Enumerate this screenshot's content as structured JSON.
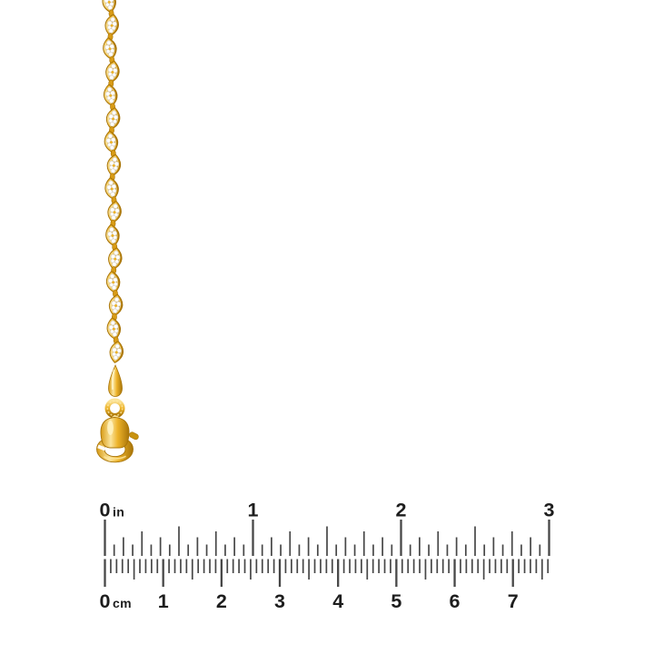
{
  "page": {
    "background": "#ffffff",
    "kind": "jewelry-product-photo-with-scale-ruler"
  },
  "product": {
    "name": "two-tone-gold-twisted-chain",
    "chain": {
      "style": "singapore-twist-two-tone",
      "link_count": 16,
      "colors": {
        "gold_light": "#FBE49B",
        "gold": "#EDB32A",
        "gold_mid": "#D89B15",
        "gold_dark": "#A87408",
        "gold_deep": "#8A5E06",
        "white_metal": "#FFFFFF",
        "white_shade": "#D8D1C4"
      }
    },
    "clasp": {
      "type": "lobster-clasp",
      "parts": [
        "connector-drop",
        "jump-ring",
        "clasp-body",
        "claw-loop",
        "trigger-nub"
      ]
    }
  },
  "ruler": {
    "tick_color": "#474747",
    "label_color": "#1d1d1d",
    "inch": {
      "unit": "in",
      "labels": [
        "0",
        "1",
        "2",
        "3"
      ],
      "max": 3,
      "divisions_per_unit": 16
    },
    "cm": {
      "unit": "cm",
      "labels": [
        "0",
        "1",
        "2",
        "3",
        "4",
        "5",
        "6",
        "7"
      ],
      "max": 7,
      "extra_mm_ticks": 6,
      "divisions_per_unit": 10
    }
  }
}
